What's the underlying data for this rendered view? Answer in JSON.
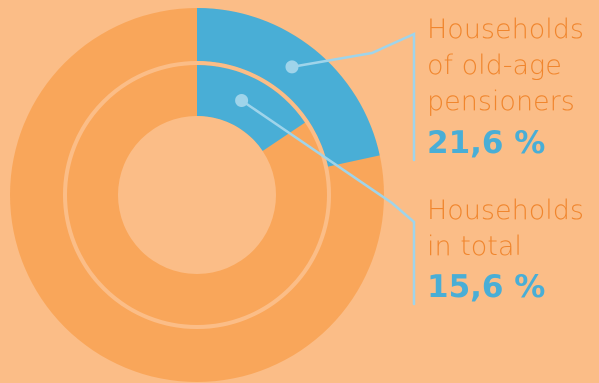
{
  "chart_data": {
    "type": "pie",
    "variant": "nested-donut",
    "series": [
      {
        "name_lines": [
          "Households",
          "of old-age",
          "pensioners"
        ],
        "highlight_value": 21.6,
        "value_label": "21,6 %"
      },
      {
        "name_lines": [
          "Households",
          "in total"
        ],
        "highlight_value": 15.6,
        "value_label": "15,6 %"
      }
    ]
  },
  "colors": {
    "background": "#fbbd87",
    "ring": "#f9a65a",
    "highlight": "#49aed6",
    "hole": "#fbbd87",
    "label_text": "#f0862e",
    "value_text": "#49aed6",
    "leader": "#9fd4ea"
  }
}
